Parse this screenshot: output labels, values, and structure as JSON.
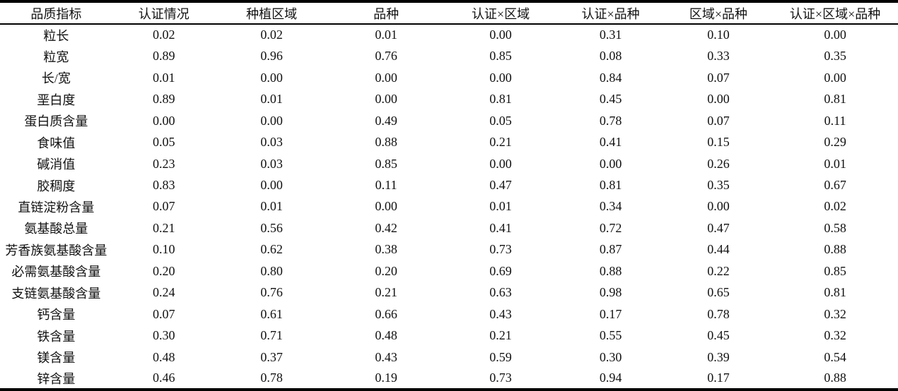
{
  "table": {
    "name": "rice-quality-indicator-significance-table",
    "columns": [
      "品质指标",
      "认证情况",
      "种植区域",
      "品种",
      "认证×区域",
      "认证×品种",
      "区域×品种",
      "认证×区域×品种"
    ],
    "rows": [
      {
        "label": "粒长",
        "values": [
          "0.02",
          "0.02",
          "0.01",
          "0.00",
          "0.31",
          "0.10",
          "0.00"
        ]
      },
      {
        "label": "粒宽",
        "values": [
          "0.89",
          "0.96",
          "0.76",
          "0.85",
          "0.08",
          "0.33",
          "0.35"
        ]
      },
      {
        "label": "长/宽",
        "values": [
          "0.01",
          "0.00",
          "0.00",
          "0.00",
          "0.84",
          "0.07",
          "0.00"
        ]
      },
      {
        "label": "垩白度",
        "values": [
          "0.89",
          "0.01",
          "0.00",
          "0.81",
          "0.45",
          "0.00",
          "0.81"
        ]
      },
      {
        "label": "蛋白质含量",
        "values": [
          "0.00",
          "0.00",
          "0.49",
          "0.05",
          "0.78",
          "0.07",
          "0.11"
        ]
      },
      {
        "label": "食味值",
        "values": [
          "0.05",
          "0.03",
          "0.88",
          "0.21",
          "0.41",
          "0.15",
          "0.29"
        ]
      },
      {
        "label": "碱消值",
        "values": [
          "0.23",
          "0.03",
          "0.85",
          "0.00",
          "0.00",
          "0.26",
          "0.01"
        ]
      },
      {
        "label": "胶稠度",
        "values": [
          "0.83",
          "0.00",
          "0.11",
          "0.47",
          "0.81",
          "0.35",
          "0.67"
        ]
      },
      {
        "label": "直链淀粉含量",
        "values": [
          "0.07",
          "0.01",
          "0.00",
          "0.01",
          "0.34",
          "0.00",
          "0.02"
        ]
      },
      {
        "label": "氨基酸总量",
        "values": [
          "0.21",
          "0.56",
          "0.42",
          "0.41",
          "0.72",
          "0.47",
          "0.58"
        ]
      },
      {
        "label": "芳香族氨基酸含量",
        "values": [
          "0.10",
          "0.62",
          "0.38",
          "0.73",
          "0.87",
          "0.44",
          "0.88"
        ]
      },
      {
        "label": "必需氨基酸含量",
        "values": [
          "0.20",
          "0.80",
          "0.20",
          "0.69",
          "0.88",
          "0.22",
          "0.85"
        ]
      },
      {
        "label": "支链氨基酸含量",
        "values": [
          "0.24",
          "0.76",
          "0.21",
          "0.63",
          "0.98",
          "0.65",
          "0.81"
        ]
      },
      {
        "label": "钙含量",
        "values": [
          "0.07",
          "0.61",
          "0.66",
          "0.43",
          "0.17",
          "0.78",
          "0.32"
        ]
      },
      {
        "label": "铁含量",
        "values": [
          "0.30",
          "0.71",
          "0.48",
          "0.21",
          "0.55",
          "0.45",
          "0.32"
        ]
      },
      {
        "label": "镁含量",
        "values": [
          "0.48",
          "0.37",
          "0.43",
          "0.59",
          "0.30",
          "0.39",
          "0.54"
        ]
      },
      {
        "label": "锌含量",
        "values": [
          "0.46",
          "0.78",
          "0.19",
          "0.73",
          "0.94",
          "0.17",
          "0.88"
        ]
      }
    ]
  }
}
